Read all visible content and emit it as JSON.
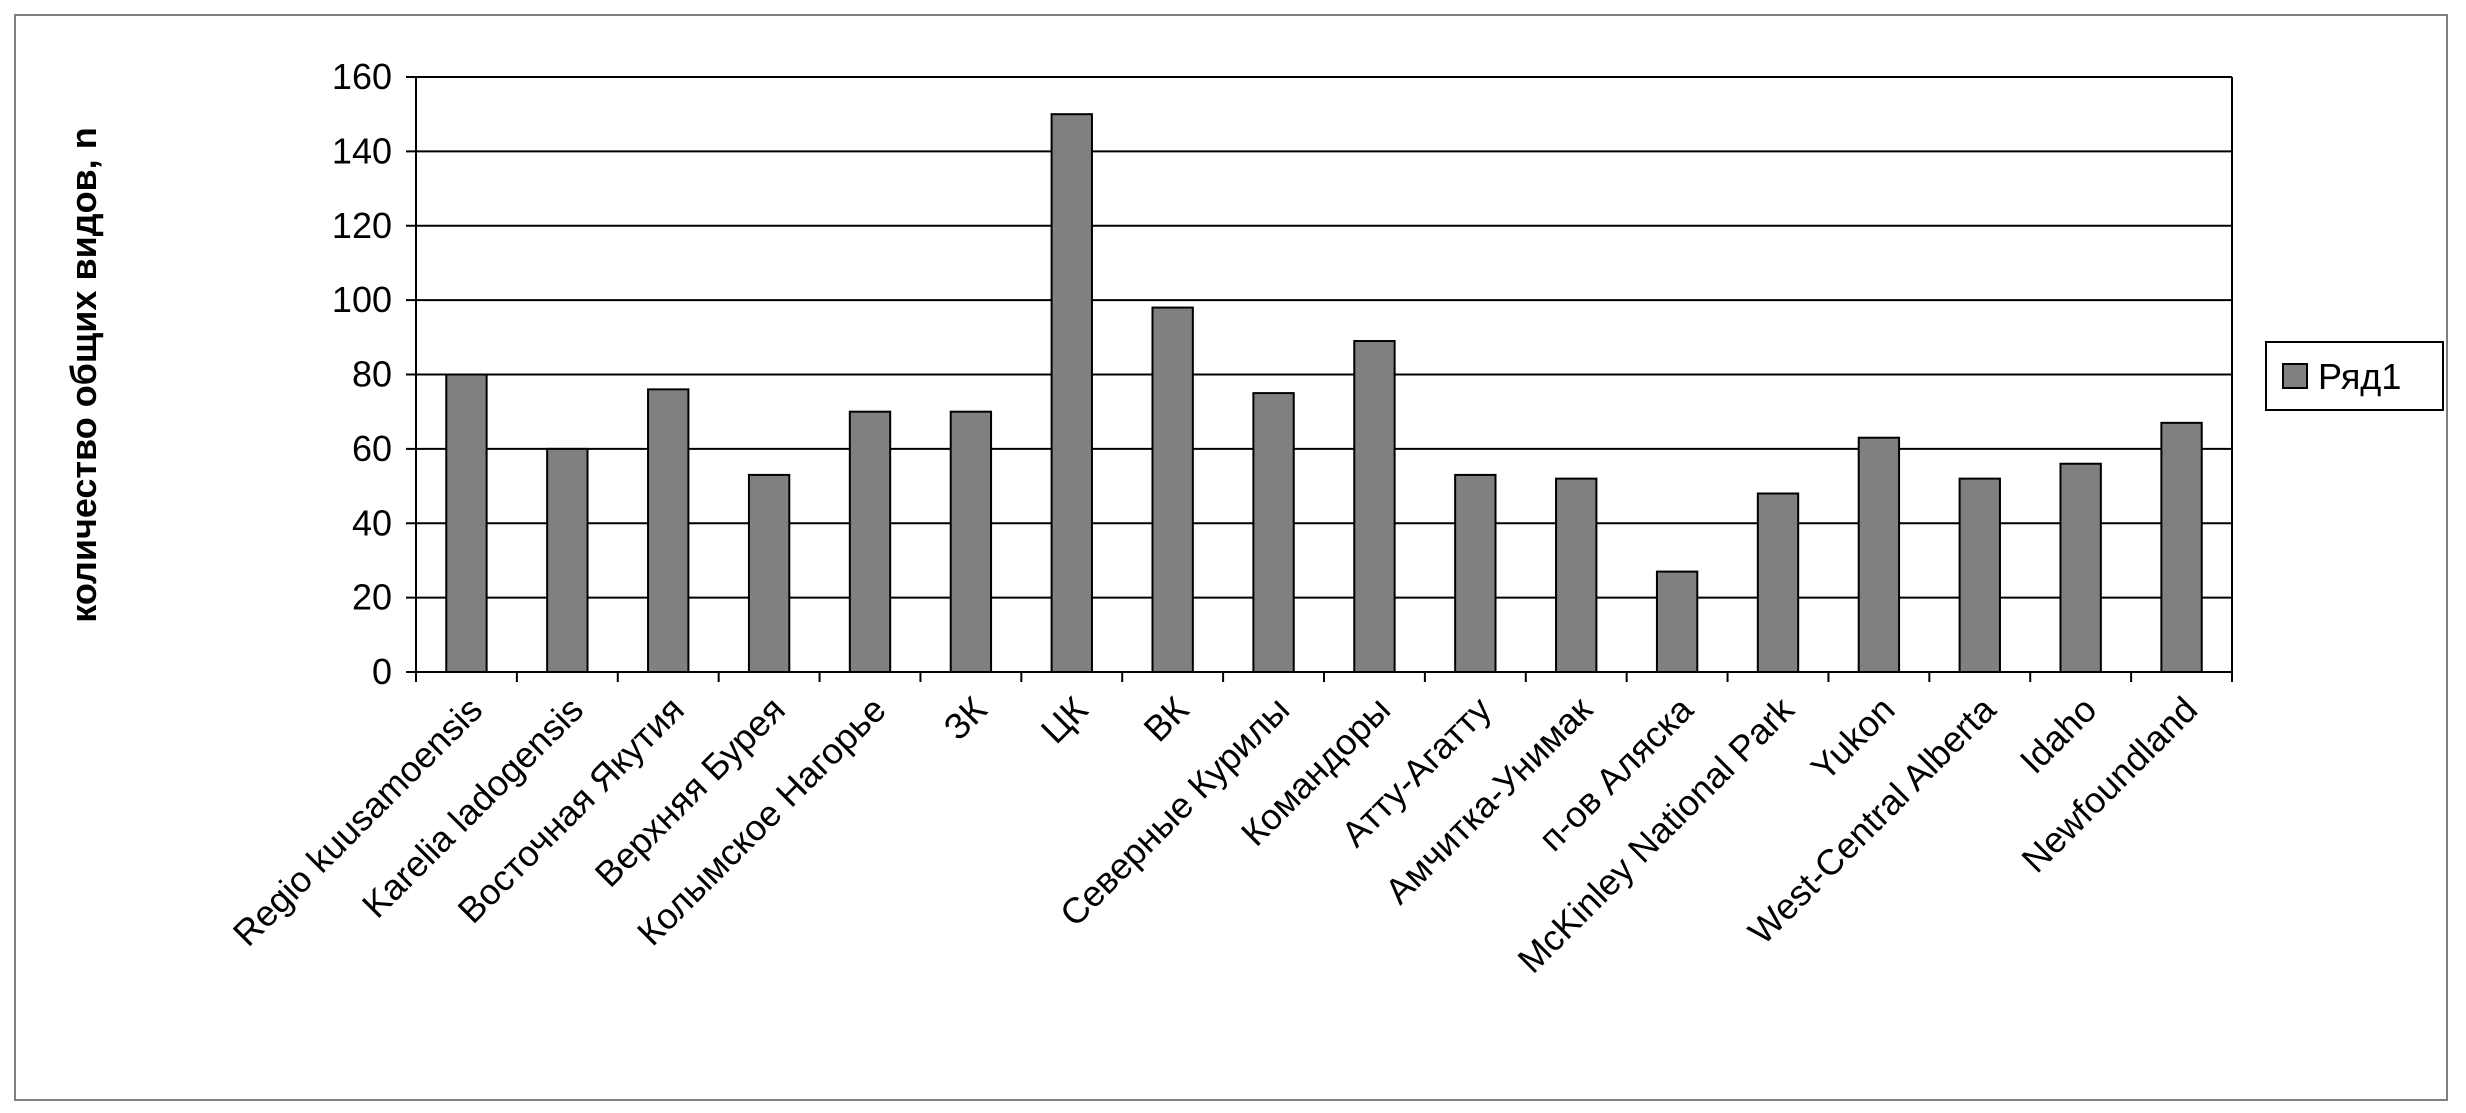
{
  "chart_data": {
    "type": "bar",
    "title": "",
    "xlabel": "",
    "ylabel": "количество общих видов, n",
    "ylim": [
      0,
      160
    ],
    "yticks": [
      0,
      20,
      40,
      60,
      80,
      100,
      120,
      140,
      160
    ],
    "grid": true,
    "legend_position": "right",
    "colors": {
      "bar_fill": "#808080",
      "bar_stroke": "#000000",
      "grid": "#000000",
      "axis": "#000000"
    },
    "categories": [
      "Regio kuusamoensis",
      "Karelia ladogensis",
      "Восточная Якутия",
      "Верхняя Бурея",
      "Колымское Нагорье",
      "ЗК",
      "ЦК",
      "ВК",
      "Северные Курилы",
      "Командоры",
      "Атту-Агатту",
      "Амчитка-Унимак",
      "п-ов Аляска",
      "McKinley National Park",
      "Yukon",
      "West-Central Alberta",
      "Idaho",
      "Newfoundland"
    ],
    "series": [
      {
        "name": "Ряд1",
        "values": [
          80,
          60,
          76,
          53,
          70,
          70,
          150,
          98,
          75,
          89,
          53,
          52,
          27,
          48,
          63,
          52,
          56,
          67
        ]
      }
    ]
  }
}
